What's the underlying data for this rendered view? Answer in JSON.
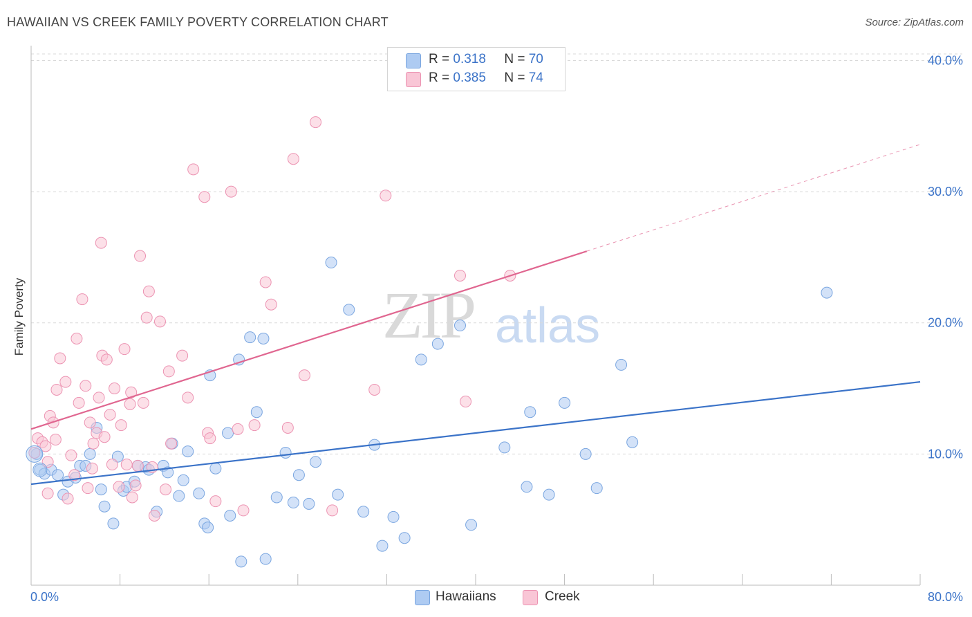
{
  "header": {
    "title": "HAWAIIAN VS CREEK FAMILY POVERTY CORRELATION CHART",
    "source": "Source: ZipAtlas.com"
  },
  "watermark": {
    "zip": "ZIP",
    "atlas": "atlas"
  },
  "legend": {
    "rows": [
      {
        "r_label": "R =",
        "r_value": "0.318",
        "n_label": "N =",
        "n_value": "70",
        "color": "#aecbf2",
        "border": "#7aa6e0"
      },
      {
        "r_label": "R =",
        "r_value": "0.385",
        "n_label": "N =",
        "n_value": "74",
        "color": "#f9c6d6",
        "border": "#ec93b2"
      }
    ]
  },
  "bottom_legend": {
    "hawaiians": "Hawaiians",
    "creek": "Creek"
  },
  "chart_data": {
    "type": "scatter",
    "title": "HAWAIIAN VS CREEK FAMILY POVERTY CORRELATION CHART",
    "xlabel": "",
    "ylabel": "Family Poverty",
    "xlim": [
      0,
      80
    ],
    "ylim": [
      0,
      40.5
    ],
    "x_tick_labels": [
      "0.0%",
      "80.0%"
    ],
    "y_ticks": [
      10,
      20,
      30,
      40
    ],
    "y_tick_labels": [
      "10.0%",
      "20.0%",
      "30.0%",
      "40.0%"
    ],
    "grid": true,
    "series": [
      {
        "name": "Hawaiians",
        "color": "#3b73c8",
        "fill": "#aecbf2",
        "stroke": "#7aa6e0",
        "trend": {
          "x0": 0,
          "y0": 7.7,
          "x1": 80,
          "y1": 15.5,
          "dash_from": null
        },
        "points": [
          [
            0.5,
            10.0
          ],
          [
            0.8,
            8.8
          ],
          [
            1.2,
            8.5
          ],
          [
            1.8,
            8.8
          ],
          [
            2.4,
            8.4
          ],
          [
            2.9,
            6.9
          ],
          [
            3.3,
            7.9
          ],
          [
            4.0,
            8.2
          ],
          [
            4.4,
            9.1
          ],
          [
            4.9,
            9.1
          ],
          [
            5.3,
            10.0
          ],
          [
            5.9,
            12.0
          ],
          [
            6.3,
            7.3
          ],
          [
            6.6,
            6.0
          ],
          [
            7.4,
            4.7
          ],
          [
            7.8,
            9.8
          ],
          [
            8.3,
            7.2
          ],
          [
            8.6,
            7.5
          ],
          [
            9.3,
            7.9
          ],
          [
            9.6,
            9.1
          ],
          [
            10.3,
            9.0
          ],
          [
            10.6,
            8.8
          ],
          [
            11.3,
            5.6
          ],
          [
            11.9,
            9.1
          ],
          [
            12.3,
            8.6
          ],
          [
            12.7,
            10.8
          ],
          [
            13.3,
            6.8
          ],
          [
            13.7,
            8.0
          ],
          [
            14.1,
            10.2
          ],
          [
            15.1,
            7.0
          ],
          [
            15.6,
            4.7
          ],
          [
            15.9,
            4.4
          ],
          [
            16.1,
            16.0
          ],
          [
            16.6,
            8.9
          ],
          [
            17.7,
            11.6
          ],
          [
            17.9,
            5.3
          ],
          [
            18.7,
            17.2
          ],
          [
            18.9,
            1.8
          ],
          [
            19.7,
            18.9
          ],
          [
            20.3,
            13.2
          ],
          [
            20.9,
            18.8
          ],
          [
            21.1,
            2.0
          ],
          [
            22.1,
            6.7
          ],
          [
            22.9,
            10.1
          ],
          [
            23.6,
            6.3
          ],
          [
            24.1,
            8.4
          ],
          [
            25.0,
            6.2
          ],
          [
            25.6,
            9.4
          ],
          [
            27.0,
            24.6
          ],
          [
            27.6,
            6.9
          ],
          [
            28.6,
            21.0
          ],
          [
            29.9,
            5.6
          ],
          [
            30.9,
            10.7
          ],
          [
            31.6,
            3.0
          ],
          [
            32.6,
            5.2
          ],
          [
            33.6,
            3.6
          ],
          [
            35.1,
            17.2
          ],
          [
            36.6,
            18.4
          ],
          [
            38.6,
            19.8
          ],
          [
            39.6,
            4.6
          ],
          [
            42.6,
            10.5
          ],
          [
            44.6,
            7.5
          ],
          [
            44.9,
            13.2
          ],
          [
            46.6,
            6.9
          ],
          [
            48.0,
            13.9
          ],
          [
            49.9,
            10.0
          ],
          [
            50.9,
            7.4
          ],
          [
            53.1,
            16.8
          ],
          [
            54.1,
            10.9
          ],
          [
            71.6,
            22.3
          ]
        ]
      },
      {
        "name": "Creek",
        "color": "#e06690",
        "fill": "#f9c6d6",
        "stroke": "#ec93b2",
        "trend": {
          "x0": 0,
          "y0": 11.9,
          "x1": 80,
          "y1": 33.6,
          "dash_from": 50
        },
        "points": [
          [
            0.3,
            10.1
          ],
          [
            0.6,
            11.2
          ],
          [
            1.0,
            10.9
          ],
          [
            1.3,
            10.6
          ],
          [
            1.5,
            9.4
          ],
          [
            1.7,
            12.9
          ],
          [
            2.0,
            12.4
          ],
          [
            2.3,
            14.9
          ],
          [
            2.6,
            17.3
          ],
          [
            3.1,
            15.5
          ],
          [
            3.3,
            6.6
          ],
          [
            3.6,
            9.9
          ],
          [
            3.9,
            8.4
          ],
          [
            4.1,
            18.8
          ],
          [
            4.3,
            13.9
          ],
          [
            4.6,
            21.8
          ],
          [
            4.9,
            15.2
          ],
          [
            5.1,
            7.4
          ],
          [
            5.3,
            12.4
          ],
          [
            5.6,
            10.8
          ],
          [
            5.9,
            11.6
          ],
          [
            6.1,
            14.3
          ],
          [
            6.3,
            26.1
          ],
          [
            6.4,
            17.5
          ],
          [
            6.6,
            11.3
          ],
          [
            6.8,
            17.2
          ],
          [
            7.1,
            13.0
          ],
          [
            7.3,
            9.2
          ],
          [
            7.5,
            15.0
          ],
          [
            7.9,
            7.5
          ],
          [
            8.1,
            12.2
          ],
          [
            8.4,
            18.0
          ],
          [
            8.6,
            9.2
          ],
          [
            8.9,
            13.8
          ],
          [
            9.1,
            6.7
          ],
          [
            9.4,
            7.6
          ],
          [
            9.6,
            9.1
          ],
          [
            9.8,
            25.1
          ],
          [
            10.1,
            13.9
          ],
          [
            10.4,
            20.4
          ],
          [
            10.6,
            22.4
          ],
          [
            10.9,
            9.0
          ],
          [
            11.1,
            5.3
          ],
          [
            11.6,
            20.1
          ],
          [
            12.1,
            7.3
          ],
          [
            12.4,
            16.3
          ],
          [
            12.6,
            10.8
          ],
          [
            13.6,
            17.5
          ],
          [
            14.1,
            14.3
          ],
          [
            14.6,
            31.7
          ],
          [
            15.6,
            29.6
          ],
          [
            15.9,
            11.6
          ],
          [
            16.1,
            11.2
          ],
          [
            16.6,
            6.4
          ],
          [
            18.0,
            30.0
          ],
          [
            18.6,
            11.9
          ],
          [
            19.1,
            5.7
          ],
          [
            20.1,
            12.2
          ],
          [
            21.1,
            23.1
          ],
          [
            21.6,
            21.4
          ],
          [
            23.1,
            12.0
          ],
          [
            23.6,
            32.5
          ],
          [
            24.6,
            16.0
          ],
          [
            25.6,
            35.3
          ],
          [
            27.1,
            5.7
          ],
          [
            30.9,
            14.9
          ],
          [
            31.9,
            29.7
          ],
          [
            38.6,
            23.6
          ],
          [
            39.1,
            14.0
          ],
          [
            43.1,
            23.6
          ],
          [
            1.5,
            7.0
          ],
          [
            5.5,
            8.9
          ],
          [
            9.0,
            14.7
          ],
          [
            2.2,
            11.1
          ]
        ]
      }
    ]
  }
}
